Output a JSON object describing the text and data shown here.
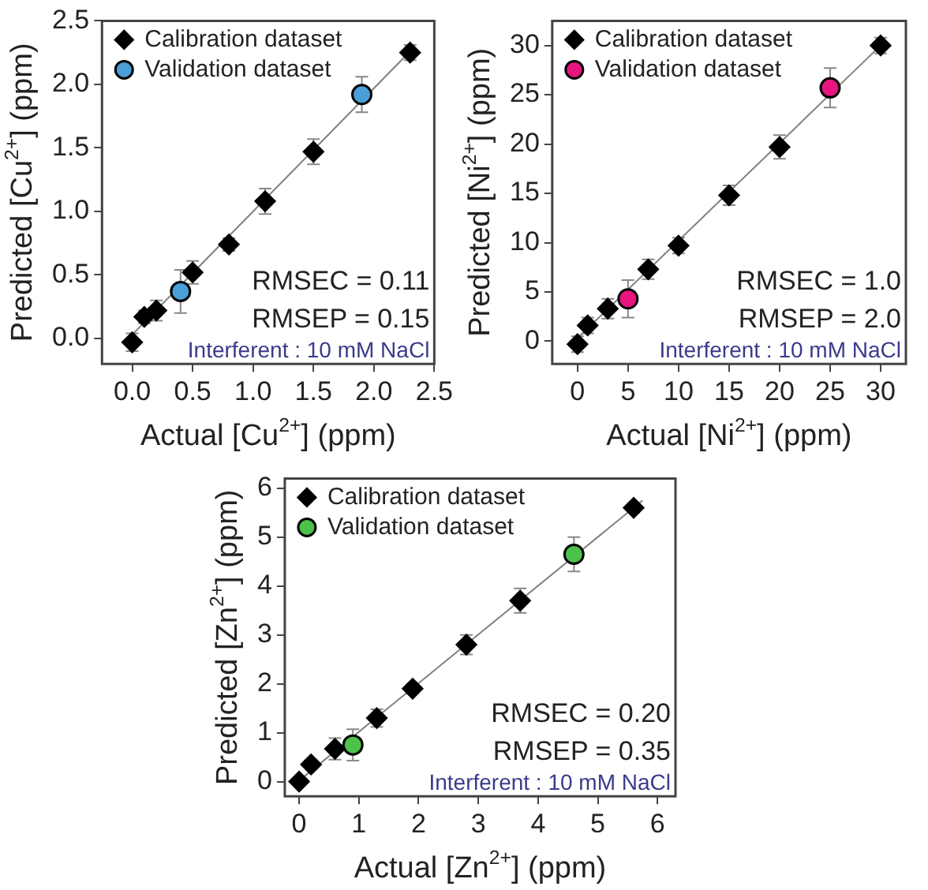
{
  "chart_data": [
    {
      "type": "scatter",
      "xlabel": "Actual [Cu$^{2+}$] (ppm)",
      "ylabel": "Predicted [Cu$^{2+}$] (ppm)",
      "xlim": [
        -0.25,
        2.5
      ],
      "ylim": [
        -0.2,
        2.5
      ],
      "xticks": [
        {
          "value": 0,
          "label": "0.0"
        },
        {
          "value": 0.5,
          "label": "0.5"
        },
        {
          "value": 1,
          "label": "1.0"
        },
        {
          "value": 1.5,
          "label": "1.5"
        },
        {
          "value": 2,
          "label": "2.0"
        },
        {
          "value": 2.5,
          "label": "2.5"
        }
      ],
      "yticks": [
        {
          "value": 0,
          "label": "0.0"
        },
        {
          "value": 0.5,
          "label": "0.5"
        },
        {
          "value": 1,
          "label": "1.0"
        },
        {
          "value": 1.5,
          "label": "1.5"
        },
        {
          "value": 2,
          "label": "2.0"
        },
        {
          "value": 2.5,
          "label": "2.5"
        }
      ],
      "legend": "top left",
      "grid": false,
      "series": [
        {
          "type": "line",
          "color": "#808080",
          "x": [
            0,
            2.3
          ],
          "values": [
            0.03,
            2.26
          ]
        },
        {
          "name": "Calibration dataset",
          "color": "#000000",
          "marker": "diamond",
          "x": [
            0,
            0.1,
            0.2,
            0.5,
            0.8,
            1.1,
            1.5,
            2.3
          ],
          "values": [
            -0.03,
            0.17,
            0.22,
            0.52,
            0.74,
            1.08,
            1.47,
            2.25
          ],
          "errors": [
            0.07,
            0.05,
            0.08,
            0.09,
            0.05,
            0.1,
            0.1,
            0.06
          ]
        },
        {
          "name": "Validation dataset",
          "color": "#4a9fd8",
          "marker": "circle",
          "x": [
            0.4,
            1.9
          ],
          "values": [
            0.37,
            1.92
          ],
          "errors": [
            0.17,
            0.14
          ]
        }
      ],
      "annotations": [
        "RMSEC = 0.11",
        "RMSEP = 0.15",
        "Interferent : 10 mM NaCl"
      ]
    },
    {
      "type": "scatter",
      "xlabel": "Actual [Ni$^{2+}$] (ppm)",
      "ylabel": "Predicted [Ni$^{2+}$] (ppm)",
      "xlim": [
        -2.5,
        32.5
      ],
      "ylim": [
        -2.3,
        32.5
      ],
      "xticks": [
        0,
        5,
        10,
        15,
        20,
        25,
        30
      ],
      "yticks": [
        0,
        5,
        10,
        15,
        20,
        25,
        30
      ],
      "legend": "top left",
      "grid": false,
      "series": [
        {
          "type": "line",
          "color": "#808080",
          "x": [
            0,
            30
          ],
          "values": [
            0.3,
            30
          ]
        },
        {
          "name": "Calibration dataset",
          "color": "#000000",
          "marker": "diamond",
          "x": [
            0,
            1,
            3,
            7,
            10,
            15,
            20,
            30
          ],
          "values": [
            -0.3,
            1.6,
            3.3,
            7.3,
            9.7,
            14.8,
            19.7,
            30
          ],
          "errors": [
            0.8,
            0.8,
            1,
            1,
            0.8,
            1,
            1.2,
            0.8
          ]
        },
        {
          "name": "Validation dataset",
          "color": "#e8157f",
          "marker": "circle",
          "x": [
            5,
            25
          ],
          "values": [
            4.3,
            25.7
          ],
          "errors": [
            1.9,
            2
          ]
        }
      ],
      "annotations": [
        "RMSEC = 1.0",
        "RMSEP = 2.0",
        "Interferent : 10 mM NaCl"
      ]
    },
    {
      "type": "scatter",
      "xlabel": "Actual [Zn$^{2+}$] (ppm)",
      "ylabel": "Predicted [Zn$^{2+}$] (ppm)",
      "xlim": [
        -0.24,
        6.3
      ],
      "ylim": [
        -0.3,
        6.2
      ],
      "xticks": [
        0,
        1,
        2,
        3,
        4,
        5,
        6
      ],
      "yticks": [
        0,
        1,
        2,
        3,
        4,
        5,
        6
      ],
      "legend": "top left",
      "grid": false,
      "series": [
        {
          "type": "line",
          "color": "#808080",
          "x": [
            0,
            5.75
          ],
          "values": [
            0.02,
            5.75
          ]
        },
        {
          "name": "Calibration dataset",
          "color": "#000000",
          "marker": "diamond",
          "x": [
            0,
            0.2,
            0.6,
            1.3,
            1.9,
            2.8,
            3.7,
            5.6
          ],
          "values": [
            0,
            0.35,
            0.67,
            1.3,
            1.9,
            2.8,
            3.7,
            5.6
          ],
          "errors": [
            0.05,
            0.1,
            0.22,
            0.18,
            0.1,
            0.2,
            0.25,
            0.1
          ]
        },
        {
          "name": "Validation dataset",
          "color": "#4cc24a",
          "marker": "circle",
          "x": [
            0.9,
            4.6
          ],
          "values": [
            0.75,
            4.65
          ],
          "errors": [
            0.32,
            0.35
          ]
        }
      ],
      "annotations": [
        "RMSEC = 0.20",
        "RMSEP = 0.35",
        "Interferent : 10 mM NaCl"
      ]
    }
  ]
}
